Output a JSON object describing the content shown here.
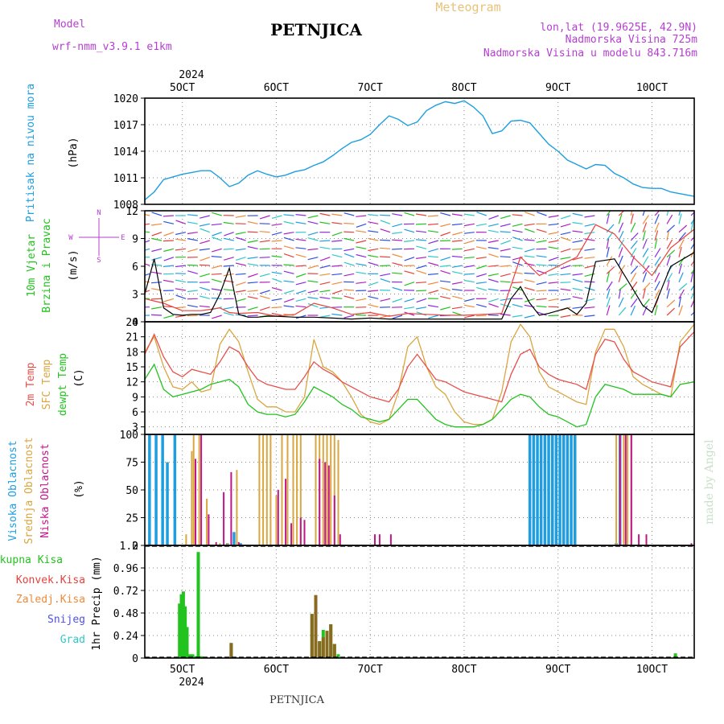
{
  "header": {
    "model_label": "Model",
    "model_name": "wrf-nmm_v3.9.1 e1km",
    "station": "PETNJICA",
    "title": "Meteogram",
    "coords": "lon,lat (19.9625E, 42.9N)",
    "elevation": "Nadmorska Visina 725m",
    "model_elevation": "Nadmorska Visina u modelu 843.716m",
    "footer_station": "PETNJICA",
    "credit": "made by Angel",
    "year_top": "2024",
    "year_bottom": "2024"
  },
  "colors": {
    "pressure": "#1e9ee0",
    "wind_speed": "#000000",
    "gust": "#e8403c",
    "temp2m": "#e8504a",
    "sfc_temp": "#d9a640",
    "dewpoint": "#22c31e",
    "cloud_high": "#1e9ee0",
    "cloud_mid": "#d9a640",
    "cloud_low": "#c0168a",
    "precip_total": "#22c31e",
    "precip_conv": "#8a6a20",
    "axis_label_precip": "#000000"
  },
  "chart_data": [
    {
      "type": "line",
      "panel": "pressure",
      "ylabel_color_text": "Pritisak na nivou mora",
      "unit": "(hPa)",
      "ylim": [
        1008,
        1020
      ],
      "yticks": [
        1008,
        1011,
        1014,
        1017,
        1020
      ],
      "x_categories": [
        "5OCT",
        "6OCT",
        "7OCT",
        "8OCT",
        "9OCT",
        "10OCT"
      ],
      "xlim_days": [
        4.6,
        10.45
      ],
      "x": [
        4.6,
        4.7,
        4.8,
        4.9,
        5.0,
        5.1,
        5.2,
        5.3,
        5.4,
        5.5,
        5.6,
        5.7,
        5.8,
        5.9,
        6.0,
        6.1,
        6.2,
        6.3,
        6.4,
        6.5,
        6.6,
        6.7,
        6.8,
        6.9,
        7.0,
        7.1,
        7.2,
        7.3,
        7.4,
        7.5,
        7.6,
        7.7,
        7.8,
        7.9,
        8.0,
        8.1,
        8.2,
        8.3,
        8.4,
        8.5,
        8.6,
        8.7,
        8.8,
        8.9,
        9.0,
        9.1,
        9.2,
        9.3,
        9.4,
        9.5,
        9.6,
        9.7,
        9.8,
        9.9,
        10.0,
        10.1,
        10.2,
        10.3,
        10.45
      ],
      "y": [
        1008.5,
        1009.4,
        1010.8,
        1011.1,
        1011.4,
        1011.6,
        1011.8,
        1011.8,
        1011.0,
        1010.0,
        1010.4,
        1011.3,
        1011.8,
        1011.4,
        1011.1,
        1011.3,
        1011.7,
        1011.9,
        1012.4,
        1012.8,
        1013.5,
        1014.3,
        1015.0,
        1015.3,
        1015.9,
        1017.0,
        1018.0,
        1017.6,
        1016.9,
        1017.3,
        1018.6,
        1019.2,
        1019.6,
        1019.4,
        1019.7,
        1019.0,
        1018.0,
        1016.0,
        1016.3,
        1017.4,
        1017.5,
        1017.2,
        1016.0,
        1014.8,
        1014.0,
        1013.0,
        1012.5,
        1012.0,
        1012.5,
        1012.4,
        1011.5,
        1011.0,
        1010.3,
        1009.9,
        1009.8,
        1009.8,
        1009.4,
        1009.2,
        1008.9
      ]
    },
    {
      "type": "line",
      "panel": "wind",
      "ylabel_color_text": "10m Vjetar",
      "ylabel_color_text2": "Brzina i Pravac",
      "unit": "(m/s)",
      "compass": {
        "north": "N",
        "west": "W",
        "east": "E",
        "south": "S"
      },
      "ylim": [
        0,
        12
      ],
      "yticks": [
        0,
        3,
        6,
        9,
        12
      ],
      "series": [
        {
          "name": "speed",
          "x": [
            4.6,
            4.7,
            4.8,
            4.9,
            5.0,
            5.1,
            5.2,
            5.3,
            5.4,
            5.5,
            5.6,
            5.7,
            5.8,
            5.9,
            6.0,
            6.2,
            6.4,
            6.6,
            6.8,
            7.0,
            7.2,
            7.4,
            7.6,
            7.8,
            8.0,
            8.2,
            8.4,
            8.5,
            8.6,
            8.7,
            8.8,
            8.9,
            9.0,
            9.1,
            9.2,
            9.3,
            9.4,
            9.6,
            9.8,
            9.9,
            10.0,
            10.2,
            10.45
          ],
          "y": [
            3,
            6.8,
            1.5,
            0.8,
            0.7,
            0.8,
            0.8,
            1.0,
            3.0,
            5.8,
            0.8,
            0.5,
            0.5,
            0.6,
            0.6,
            0.5,
            0.5,
            0.4,
            0.3,
            0.4,
            0.3,
            0.3,
            0.3,
            0.3,
            0.3,
            0.3,
            0.3,
            2.5,
            3.8,
            2.0,
            0.7,
            0.9,
            1.2,
            1.5,
            0.8,
            2.0,
            6.5,
            6.8,
            3.5,
            1.8,
            1.0,
            6.0,
            7.5
          ]
        },
        {
          "name": "gust",
          "x": [
            4.6,
            4.8,
            5.0,
            5.2,
            5.4,
            5.5,
            5.6,
            5.8,
            6.0,
            6.2,
            6.4,
            6.6,
            6.8,
            7.0,
            7.2,
            7.4,
            7.6,
            7.8,
            8.0,
            8.2,
            8.4,
            8.6,
            8.8,
            9.0,
            9.2,
            9.4,
            9.6,
            9.8,
            10.0,
            10.2,
            10.45
          ],
          "y": [
            2.5,
            2.0,
            1.2,
            1.2,
            1.5,
            1.0,
            0.9,
            1.0,
            0.6,
            0.8,
            2.0,
            1.5,
            0.8,
            1.0,
            0.6,
            0.9,
            0.8,
            0.7,
            0.7,
            0.8,
            0.9,
            7.0,
            5.0,
            6.0,
            7.0,
            10.5,
            9.5,
            7.0,
            5.0,
            8.0,
            10.0
          ]
        }
      ]
    },
    {
      "type": "line",
      "panel": "temperature",
      "labels": [
        "2m Temp",
        "SFC Temp",
        "dewpt Temp"
      ],
      "unit": "(C)",
      "ylim": [
        1.5,
        24
      ],
      "yticks": [
        3,
        6,
        9,
        12,
        15,
        18,
        21,
        24
      ],
      "series": [
        {
          "name": "2m Temp",
          "x": [
            4.6,
            4.7,
            4.8,
            4.9,
            5.0,
            5.1,
            5.2,
            5.3,
            5.4,
            5.5,
            5.6,
            5.7,
            5.8,
            5.9,
            6.0,
            6.1,
            6.2,
            6.3,
            6.4,
            6.5,
            6.6,
            6.7,
            6.8,
            6.9,
            7.0,
            7.1,
            7.2,
            7.3,
            7.4,
            7.5,
            7.6,
            7.7,
            7.8,
            7.9,
            8.0,
            8.1,
            8.2,
            8.3,
            8.4,
            8.5,
            8.6,
            8.7,
            8.8,
            8.9,
            9.0,
            9.1,
            9.2,
            9.3,
            9.4,
            9.5,
            9.6,
            9.7,
            9.8,
            9.9,
            10.0,
            10.1,
            10.2,
            10.3,
            10.45
          ],
          "y": [
            17.5,
            21.5,
            17.0,
            14.0,
            13.0,
            14.5,
            14.0,
            13.5,
            16.0,
            19.0,
            18.0,
            15.0,
            12.5,
            11.5,
            11.0,
            10.5,
            10.5,
            13.0,
            16.0,
            14.5,
            13.5,
            12.0,
            11.0,
            10.0,
            9.0,
            8.5,
            8.0,
            10.5,
            15.0,
            17.5,
            15.0,
            12.5,
            12.0,
            11.0,
            10.0,
            9.5,
            9.0,
            8.5,
            8.0,
            13.5,
            17.5,
            18.5,
            15.0,
            13.5,
            12.5,
            12.0,
            11.5,
            10.5,
            17.5,
            20.5,
            20.0,
            16.5,
            14.0,
            13.0,
            12.0,
            11.5,
            11.0,
            19.0,
            22.0
          ]
        },
        {
          "name": "SFC Temp",
          "x": [
            4.6,
            4.7,
            4.8,
            4.9,
            5.0,
            5.1,
            5.2,
            5.3,
            5.4,
            5.5,
            5.6,
            5.7,
            5.8,
            5.9,
            6.0,
            6.1,
            6.2,
            6.3,
            6.4,
            6.5,
            6.6,
            6.7,
            6.8,
            6.9,
            7.0,
            7.1,
            7.2,
            7.3,
            7.4,
            7.5,
            7.6,
            7.7,
            7.8,
            7.9,
            8.0,
            8.1,
            8.2,
            8.3,
            8.4,
            8.5,
            8.6,
            8.7,
            8.8,
            8.9,
            9.0,
            9.1,
            9.2,
            9.3,
            9.4,
            9.5,
            9.6,
            9.7,
            9.8,
            9.9,
            10.0,
            10.1,
            10.2,
            10.3,
            10.45
          ],
          "y": [
            18.0,
            21.0,
            15.0,
            11.0,
            10.5,
            12.0,
            10.0,
            10.5,
            19.5,
            22.5,
            20.0,
            14.0,
            8.5,
            7.0,
            7.0,
            6.0,
            6.0,
            9.0,
            20.5,
            15.0,
            14.0,
            12.0,
            9.0,
            5.5,
            4.0,
            3.5,
            4.5,
            10.0,
            19.0,
            21.0,
            15.0,
            11.0,
            9.5,
            6.0,
            4.0,
            3.5,
            3.5,
            4.5,
            10.0,
            20.0,
            23.5,
            21.0,
            14.0,
            11.0,
            10.0,
            9.0,
            8.0,
            7.5,
            18.0,
            22.5,
            22.5,
            19.0,
            13.0,
            11.5,
            10.5,
            9.5,
            9.0,
            20.0,
            23.5
          ]
        },
        {
          "name": "dewpt Temp",
          "x": [
            4.6,
            4.7,
            4.8,
            4.9,
            5.0,
            5.1,
            5.2,
            5.3,
            5.4,
            5.5,
            5.6,
            5.7,
            5.8,
            5.9,
            6.0,
            6.1,
            6.2,
            6.3,
            6.4,
            6.5,
            6.6,
            6.7,
            6.8,
            6.9,
            7.0,
            7.1,
            7.2,
            7.3,
            7.4,
            7.5,
            7.6,
            7.7,
            7.8,
            7.9,
            8.0,
            8.1,
            8.2,
            8.3,
            8.4,
            8.5,
            8.6,
            8.7,
            8.8,
            8.9,
            9.0,
            9.1,
            9.2,
            9.3,
            9.4,
            9.5,
            9.6,
            9.7,
            9.8,
            9.9,
            10.0,
            10.1,
            10.2,
            10.3,
            10.45
          ],
          "y": [
            12.5,
            15.5,
            10.5,
            9.0,
            9.5,
            10.0,
            10.5,
            11.5,
            12.0,
            12.5,
            11.0,
            7.5,
            6.0,
            5.5,
            5.5,
            5.0,
            5.5,
            8.0,
            11.0,
            10.0,
            9.0,
            7.5,
            6.5,
            5.0,
            4.5,
            4.0,
            4.5,
            6.5,
            8.5,
            8.5,
            6.5,
            4.5,
            3.5,
            3.0,
            3.0,
            3.0,
            3.5,
            4.5,
            6.5,
            8.5,
            9.5,
            9.0,
            7.0,
            5.5,
            5.0,
            4.0,
            3.0,
            3.5,
            9.0,
            11.5,
            11.0,
            10.5,
            9.5,
            9.5,
            9.5,
            9.5,
            9.0,
            11.5,
            12.0
          ]
        }
      ]
    },
    {
      "type": "bar",
      "panel": "clouds",
      "labels": [
        "Visoka Oblacnost",
        "Srednja Oblacnost",
        "Niska Oblacnost"
      ],
      "unit": "(%)",
      "ylim": [
        0,
        100
      ],
      "yticks": [
        0,
        25,
        50,
        75,
        100
      ],
      "series": [
        {
          "name": "Visoka Oblacnost",
          "x": [
            4.65,
            4.72,
            4.79,
            4.84,
            4.92,
            5.48,
            5.55,
            5.62,
            8.7,
            8.74,
            8.78,
            8.82,
            8.86,
            8.9,
            8.94,
            8.98,
            9.02,
            9.06,
            9.1,
            9.14,
            9.18,
            9.62,
            9.66
          ],
          "y": [
            100,
            100,
            100,
            75,
            100,
            2,
            12,
            2,
            100,
            100,
            100,
            100,
            100,
            100,
            100,
            100,
            100,
            100,
            100,
            100,
            100,
            2,
            100
          ]
        },
        {
          "name": "Srednja Oblacnost",
          "x": [
            5.04,
            5.1,
            5.12,
            5.18,
            5.26,
            5.4,
            5.48,
            5.58,
            5.82,
            5.86,
            5.9,
            5.94,
            6.0,
            6.06,
            6.12,
            6.18,
            6.22,
            6.26,
            6.42,
            6.46,
            6.5,
            6.54,
            6.58,
            6.62,
            6.66,
            9.62,
            9.66,
            9.7,
            9.74,
            9.78
          ],
          "y": [
            10,
            85,
            100,
            100,
            42,
            2,
            2,
            68,
            100,
            100,
            100,
            100,
            45,
            100,
            100,
            100,
            100,
            100,
            100,
            100,
            100,
            100,
            100,
            100,
            95,
            100,
            100,
            100,
            100,
            100
          ]
        },
        {
          "name": "Niska Oblacnost",
          "x": [
            5.14,
            5.2,
            5.28,
            5.36,
            5.44,
            5.52,
            5.6,
            6.02,
            6.1,
            6.16,
            6.26,
            6.3,
            6.46,
            6.52,
            6.56,
            6.62,
            6.68,
            7.05,
            7.1,
            7.22,
            9.66,
            9.72,
            9.78,
            9.86,
            9.94,
            10.42
          ],
          "y": [
            78,
            100,
            28,
            3,
            48,
            66,
            3,
            50,
            60,
            20,
            25,
            23,
            78,
            75,
            72,
            45,
            10,
            10,
            10,
            10,
            100,
            100,
            100,
            10,
            10,
            2
          ]
        }
      ]
    },
    {
      "type": "bar",
      "panel": "precipitation",
      "labels": [
        "Ukupna Kisa",
        "Konvek.Kisa",
        "Zaledj.Kisa",
        "Snijeg",
        "Grad"
      ],
      "label_colors": [
        "#22c31e",
        "#e8403c",
        "#f08a3a",
        "#5050e0",
        "#30c8c8"
      ],
      "ylabel": "1hr Precip (mm)",
      "ylim": [
        0,
        1.2
      ],
      "yticks": [
        0,
        0.24,
        0.48,
        0.72,
        0.96,
        1.2
      ],
      "yticklabels": [
        "0",
        "0.24",
        "0.48",
        "0.72",
        "0.96",
        "1.2"
      ],
      "series": [
        {
          "name": "Ukupna Kisa",
          "x": [
            4.97,
            4.99,
            5.01,
            5.03,
            5.05,
            5.08,
            5.11,
            5.14,
            5.17,
            5.2,
            5.52,
            6.38,
            6.42,
            6.46,
            6.5,
            6.54,
            6.58,
            6.62,
            6.66,
            10.25
          ],
          "y": [
            0.58,
            0.68,
            0.71,
            0.55,
            0.33,
            0.04,
            0.04,
            0.02,
            1.13,
            0.02,
            0.16,
            0.47,
            0.67,
            0.18,
            0.3,
            0.29,
            0.36,
            0.15,
            0.04,
            0.05
          ]
        },
        {
          "name": "Konvek.Kisa",
          "x": [
            5.52,
            6.38,
            6.42,
            6.46,
            6.5,
            6.54,
            6.58,
            6.62
          ],
          "y": [
            0.16,
            0.47,
            0.67,
            0.18,
            0.22,
            0.29,
            0.36,
            0.15
          ]
        }
      ]
    }
  ]
}
